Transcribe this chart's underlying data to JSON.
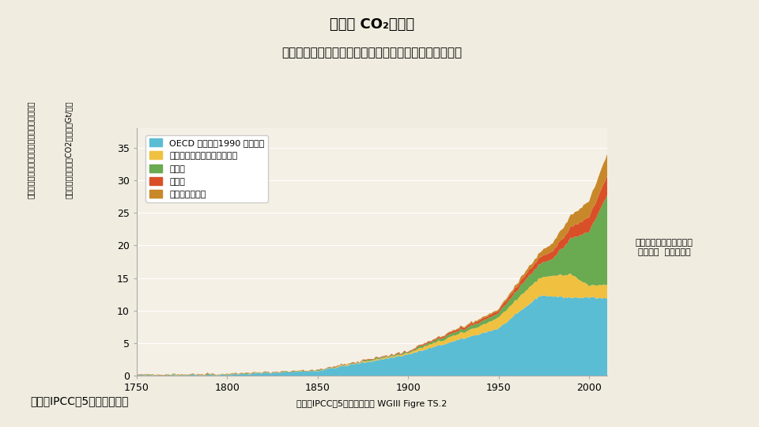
{
  "title_line1": "世界の CO₂排出量",
  "title_line2": "（燃料、セメント、フレアおよび林業・土地利用起源）",
  "ylabel_line1": "化石燃料の採掘・燃料、セメント生産、森林と",
  "ylabel_line2": "他の土地利用からのCO2排出量（Gt/年）",
  "xlabel": "出典）IPCC第5次評価報告書 WGIII Figre TS.2",
  "legend_labels": [
    "OECD 加盟国（1990 年時点）",
    "移行経済国（旧ソ連圏など）",
    "アジア",
    "中南米",
    "中東・アフリカ"
  ],
  "colors": [
    "#5bbdd4",
    "#f0c040",
    "#6aaa50",
    "#d95028",
    "#c8882a"
  ],
  "fig_bg_color": "#f0ece0",
  "plot_bg_color": "#f5f0e5",
  "xlim": [
    1750,
    2010
  ],
  "ylim": [
    0,
    38
  ],
  "yticks": [
    0,
    5,
    10,
    15,
    20,
    25,
    30,
    35
  ],
  "xticks": [
    1750,
    1800,
    1850,
    1900,
    1950,
    2000
  ],
  "annotation_right": "地球温暖化防止活動推進\nセンター  の資料より",
  "bottom_text": "出典）IPCC第5次評価報告書",
  "figsize": [
    9.6,
    5.4
  ],
  "dpi": 100
}
